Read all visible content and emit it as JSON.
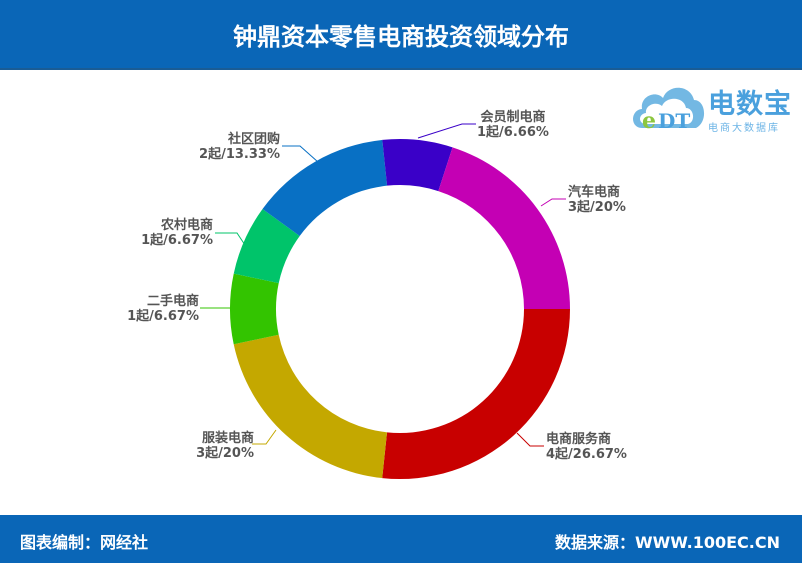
{
  "header": {
    "title": "钟鼎资本零售电商投资领域分布"
  },
  "logo": {
    "brand": "电数宝",
    "subtitle": "电商大数据库",
    "badge": "eDT"
  },
  "footer": {
    "left": "图表编制：网经社",
    "right": "数据来源：WWW.100EC.CN"
  },
  "labels": [
    {
      "name": "会员制电商",
      "value": "1起/6.66%"
    },
    {
      "name": "汽车电商",
      "value": "3起/20%"
    },
    {
      "name": "电商服务商",
      "value": "4起/26.67%"
    },
    {
      "name": "服装电商",
      "value": "3起/20%"
    },
    {
      "name": "二手电商",
      "value": "1起/6.67%"
    },
    {
      "name": "农村电商",
      "value": "1起/6.67%"
    },
    {
      "name": "社区团购",
      "value": "2起/13.33%"
    }
  ],
  "chart_data": {
    "type": "pie",
    "variant": "donut",
    "title": "钟鼎资本零售电商投资领域分布",
    "start_angle": "3 o'clock, clockwise",
    "categories": [
      "电商服务商",
      "服装电商",
      "二手电商",
      "农村电商",
      "社区团购",
      "会员制电商",
      "汽车电商"
    ],
    "counts": [
      4,
      3,
      1,
      1,
      2,
      1,
      3
    ],
    "values": [
      26.67,
      20,
      6.67,
      6.67,
      13.33,
      6.66,
      20
    ],
    "unit": "%",
    "colors": [
      "#c80000",
      "#c4a800",
      "#33c400",
      "#00c46a",
      "#0870c4",
      "#3a00c8",
      "#c400b4"
    ],
    "label_format": "{count}起/{percent}%",
    "legend": "none",
    "source": "WWW.100EC.CN",
    "compiled_by": "网经社"
  }
}
